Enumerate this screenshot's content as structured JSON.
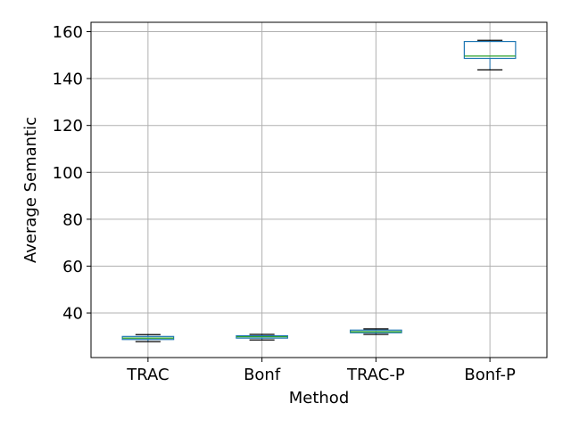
{
  "chart_data": {
    "type": "box",
    "title": "",
    "xlabel": "Method",
    "ylabel": "Average Semantic",
    "ylim": [
      21,
      164
    ],
    "yticks": [
      40,
      60,
      80,
      100,
      120,
      140,
      160
    ],
    "grid": true,
    "categories": [
      "TRAC",
      "Bonf",
      "TRAC-P",
      "Bonf-P"
    ],
    "boxes": [
      {
        "category": "TRAC",
        "whisker_low": 27.8,
        "q1": 28.7,
        "median": 29.3,
        "q3": 30.0,
        "whisker_high": 30.8
      },
      {
        "category": "Bonf",
        "whisker_low": 28.5,
        "q1": 29.3,
        "median": 29.9,
        "q3": 30.3,
        "whisker_high": 30.9
      },
      {
        "category": "TRAC-P",
        "whisker_low": 30.9,
        "q1": 31.6,
        "median": 32.0,
        "q3": 32.7,
        "whisker_high": 33.2
      },
      {
        "category": "Bonf-P",
        "whisker_low": 143.7,
        "q1": 148.6,
        "median": 149.6,
        "q3": 155.8,
        "whisker_high": 156.3
      }
    ],
    "colors": {
      "box": "#1f77b4",
      "median": "#2ca02c",
      "whisker": "#000000",
      "grid": "#b0b0b0"
    }
  }
}
